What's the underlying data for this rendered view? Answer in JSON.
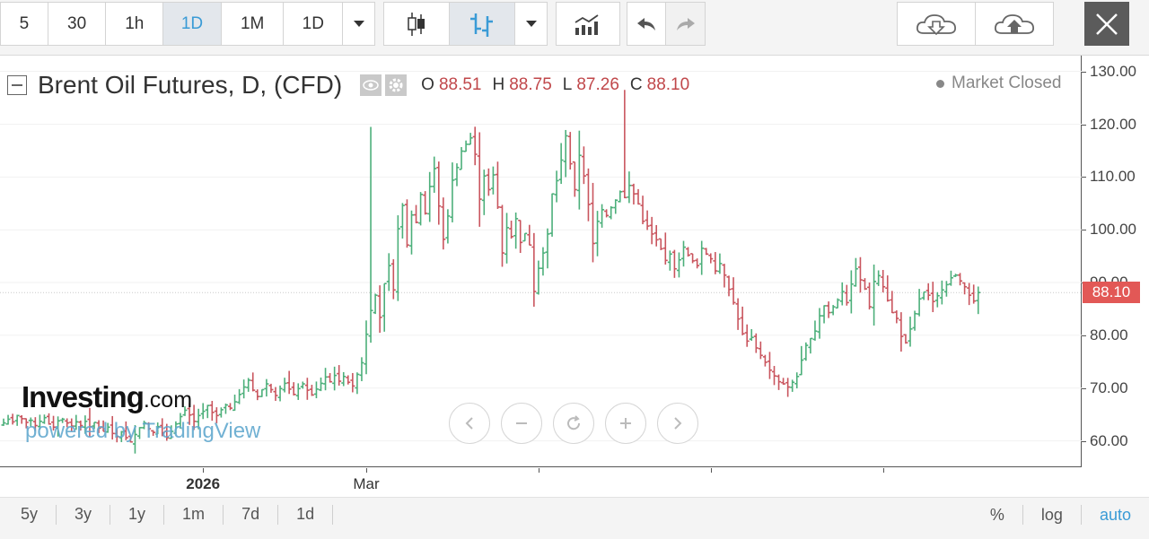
{
  "toolbar": {
    "intervals": [
      {
        "label": "5",
        "active": false
      },
      {
        "label": "30",
        "active": false
      },
      {
        "label": "1h",
        "active": false
      },
      {
        "label": "1D",
        "active": true
      },
      {
        "label": "1M",
        "active": false
      },
      {
        "label": "1D",
        "active": false
      }
    ],
    "icons": [
      "chevron-down-icon",
      "candlestick-icon",
      "bars-icon",
      "chevron-down-icon",
      "indicators-icon",
      "undo-icon",
      "redo-icon",
      "cloud-download-icon",
      "cloud-upload-icon",
      "close-icon"
    ]
  },
  "legend": {
    "title": "Brent Oil Futures, D, (CFD)",
    "open_label": "O",
    "open": "88.51",
    "high_label": "H",
    "high": "88.75",
    "low_label": "L",
    "low": "87.26",
    "close_label": "C",
    "close": "88.10",
    "market_status": "Market Closed"
  },
  "watermark": {
    "brand": "Investing",
    "brand_suffix": ".com",
    "powered": "powered by TradingView"
  },
  "last_price_label": "88.10",
  "bottom": {
    "ranges": [
      "5y",
      "3y",
      "1y",
      "1m",
      "7d",
      "1d"
    ],
    "percent": "%",
    "log": "log",
    "auto": "auto"
  },
  "colors": {
    "up": "#4caf7a",
    "down": "#c9555e",
    "last_price": "#e25856",
    "accent": "#3a9bd6"
  },
  "chart_data": {
    "type": "ohlc",
    "title": "Brent Oil Futures, D, (CFD)",
    "xlabel": "",
    "ylabel": "",
    "ylim": [
      55,
      133
    ],
    "y_ticks": [
      60,
      70,
      80,
      90,
      100,
      110,
      120,
      130
    ],
    "y_tick_labels": [
      "60.00",
      "70.00",
      "80.00",
      "90.00",
      "100.00",
      "110.00",
      "120.00",
      "130.00"
    ],
    "x_labels": [
      {
        "label": "2026",
        "index": 44,
        "bold": true
      },
      {
        "label": "Mar",
        "index": 80,
        "bold": false
      }
    ],
    "x_extra_tick_indices": [
      118,
      156,
      194
    ],
    "last_price": 88.1,
    "grid": true,
    "closes": [
      63.4,
      64.1,
      63.6,
      64.8,
      64.2,
      63.5,
      63.9,
      62.9,
      63.7,
      64.4,
      63.2,
      62.6,
      63.8,
      64.1,
      63.4,
      62.8,
      63.6,
      62.9,
      63.7,
      62.7,
      63.5,
      62.4,
      61.8,
      62.6,
      61.4,
      60.8,
      61.7,
      60.6,
      59.8,
      61.2,
      62.5,
      63.4,
      62.3,
      61.6,
      62.7,
      61.5,
      60.6,
      61.8,
      63.2,
      64.6,
      65.8,
      64.9,
      63.7,
      64.8,
      65.6,
      66.7,
      65.4,
      64.8,
      65.9,
      66.8,
      66.2,
      67.4,
      68.8,
      70.2,
      71.5,
      69.6,
      68.4,
      69.7,
      70.8,
      69.7,
      68.6,
      69.9,
      70.9,
      69.8,
      68.8,
      69.9,
      70.8,
      69.6,
      68.7,
      69.8,
      70.9,
      72.1,
      71.2,
      72.4,
      71.3,
      72.2,
      71.1,
      70.4,
      72.6,
      74.8,
      80.2,
      84.7,
      87.6,
      83.4,
      89.8,
      93.2,
      88.6,
      100.2,
      104.6,
      97.1,
      102.8,
      101.4,
      106.7,
      103.1,
      108.2,
      111.6,
      104.5,
      98.2,
      102.6,
      109.4,
      111.8,
      114.9,
      116.2,
      117.4,
      114.3,
      105.8,
      110.2,
      107.6,
      110.4,
      104.3,
      95.6,
      100.4,
      98.7,
      102.1,
      97.6,
      99.3,
      97.1,
      88.3,
      92.7,
      95.6,
      99.2,
      106.8,
      109.3,
      113.2,
      117.8,
      112.5,
      107.6,
      114.1,
      110.2,
      104.8,
      97.4,
      101.6,
      103.8,
      102.7,
      104.2,
      105.6,
      107.2,
      106.1,
      108.4,
      106.8,
      104.9,
      101.6,
      100.7,
      99.2,
      98.1,
      96.4,
      94.2,
      95.4,
      92.6,
      94.3,
      96.7,
      95.2,
      94.1,
      93.2,
      96.5,
      95.4,
      94.5,
      92.2,
      93.6,
      91.4,
      88.7,
      86.2,
      83.1,
      80.3,
      78.9,
      79.6,
      77.6,
      76.2,
      74.9,
      73.4,
      72.3,
      71.2,
      70.8,
      70.2,
      71.1,
      72.2,
      75.3,
      78.1,
      79.4,
      80.8,
      83.7,
      85.6,
      84.3,
      85.4,
      86.7,
      88.3,
      86.2,
      89.7,
      92.6,
      90.5,
      88.8,
      85.4,
      90.2,
      91.3,
      89.2,
      86.6,
      84.3,
      83.2,
      79.8,
      78.6,
      81.2,
      84.1,
      86.9,
      88.2,
      87.6,
      86.4,
      87.5,
      88.6,
      89.6,
      90.9,
      91.4,
      90.3,
      89.2,
      87.6,
      86.5,
      88.1
    ]
  }
}
